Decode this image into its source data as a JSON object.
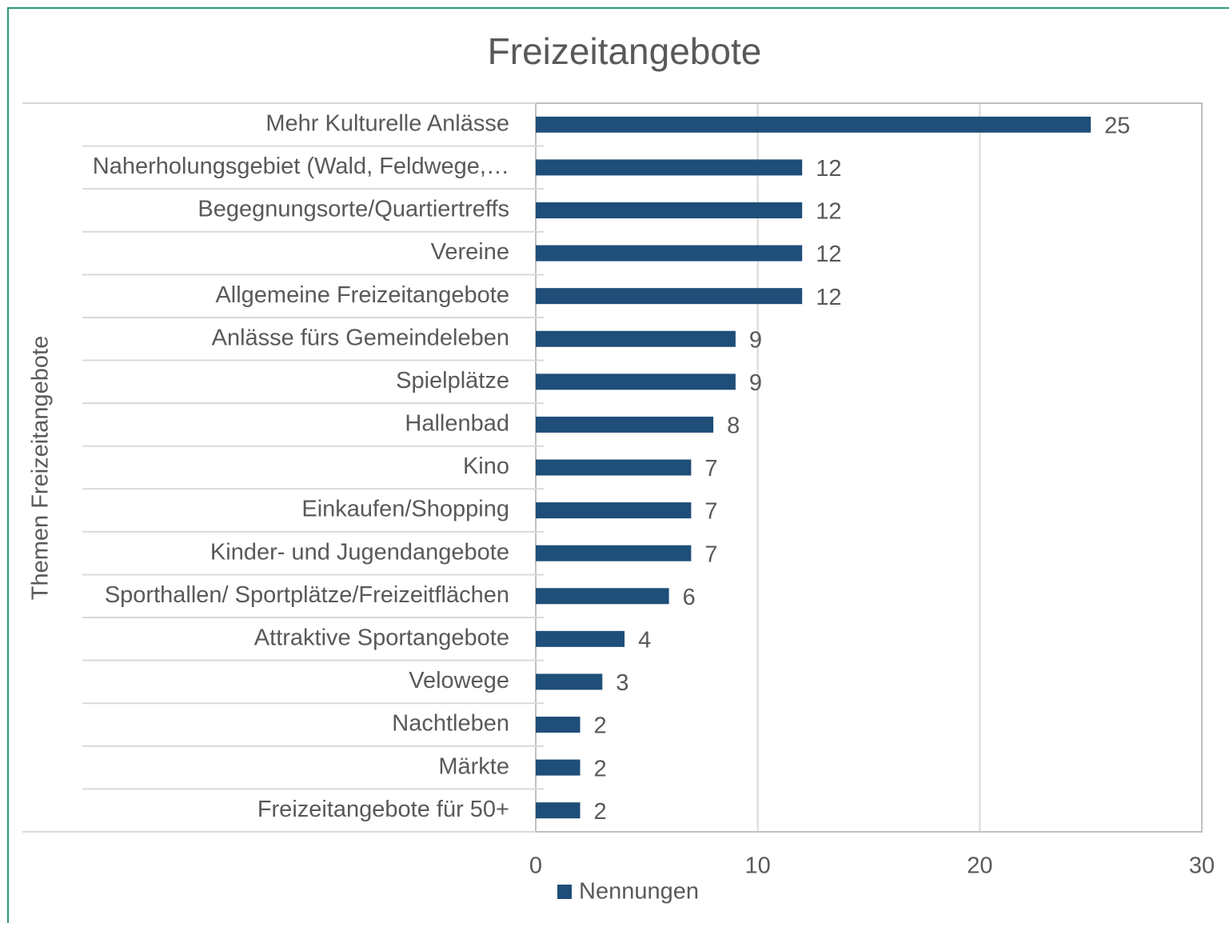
{
  "chart_data": {
    "type": "bar",
    "orientation": "horizontal",
    "title": "Freizeitangebote",
    "y_label": "Themen Freizeitangebote",
    "categories": [
      "Mehr Kulturelle Anlässe",
      "Naherholungsgebiet (Wald, Feldwege,…",
      "Begegnungsorte/Quartiertreffs",
      "Vereine",
      "Allgemeine Freizeitangebote",
      "Anlässe fürs Gemeindeleben",
      "Spielplätze",
      "Hallenbad",
      "Kino",
      "Einkaufen/Shopping",
      "Kinder- und Jugendangebote",
      "Sporthallen/ Sportplätze/Freizeitflächen",
      "Attraktive Sportangebote",
      "Velowege",
      "Nachtleben",
      "Märkte",
      "Freizeitangebote für 50+"
    ],
    "series": [
      {
        "name": "Nennungen",
        "color": "#1f4e79",
        "values": [
          25,
          12,
          12,
          12,
          12,
          9,
          9,
          8,
          7,
          7,
          7,
          6,
          4,
          3,
          2,
          2,
          2
        ]
      }
    ],
    "xlim": [
      0,
      30
    ],
    "xticks": [
      0,
      10,
      20,
      30
    ],
    "grid": true,
    "legend": "bottom"
  }
}
